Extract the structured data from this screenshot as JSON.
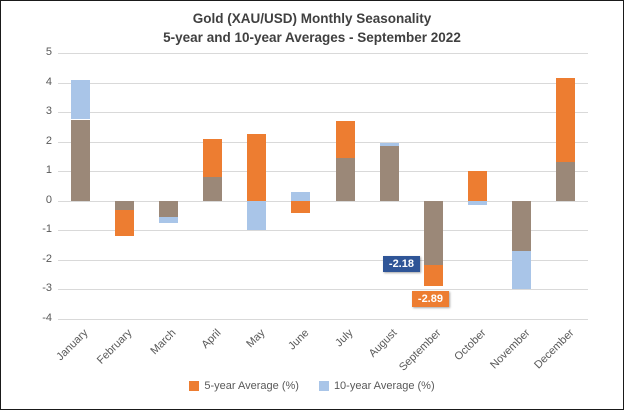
{
  "title": {
    "line1": "Gold (XAU/USD) Monthly Seasonality",
    "line2": "5-year and 10-year Averages - September 2022"
  },
  "chart_data": {
    "type": "bar",
    "categories": [
      "January",
      "February",
      "March",
      "April",
      "May",
      "June",
      "July",
      "August",
      "September",
      "October",
      "November",
      "December"
    ],
    "series": [
      {
        "name": "5-year Average (%)",
        "color": "#ED7D31",
        "values": [
          2.75,
          -1.2,
          -0.55,
          2.1,
          2.25,
          -0.4,
          2.7,
          1.85,
          -2.89,
          1.0,
          -1.7,
          4.15
        ]
      },
      {
        "name": "10-year Average (%)",
        "color": "#A9C5E8",
        "values": [
          4.1,
          -0.3,
          -0.75,
          0.8,
          -1.0,
          0.3,
          1.45,
          1.95,
          -2.18,
          -0.15,
          -3.0,
          1.3
        ]
      }
    ],
    "overlap_color": "#9B8878",
    "ylim": [
      -4,
      5
    ],
    "yticks": [
      5,
      4,
      3,
      2,
      1,
      0,
      -1,
      -2,
      -3,
      -4
    ],
    "grid": "horizontal",
    "legend_position": "bottom",
    "annotations": [
      {
        "text": "-2.18",
        "series": "10-year Average (%)",
        "month": "September",
        "value": -2.18,
        "bg": "#2F5597",
        "placement": "left"
      },
      {
        "text": "-2.89",
        "series": "5-year Average (%)",
        "month": "September",
        "value": -2.89,
        "bg": "#ED7D31",
        "placement": "below"
      }
    ]
  }
}
